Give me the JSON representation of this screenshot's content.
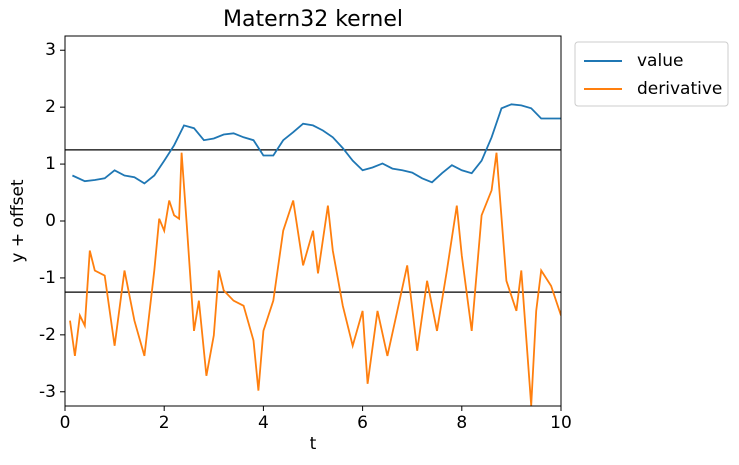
{
  "chart_data": {
    "type": "line",
    "title": "Matern32 kernel",
    "xlabel": "t",
    "ylabel": "y + offset",
    "xlim": [
      0,
      10
    ],
    "ylim": [
      -3.25,
      3.25
    ],
    "xticks": [
      0,
      2,
      4,
      6,
      8,
      10
    ],
    "yticks": [
      -3,
      -2,
      -1,
      0,
      1,
      2,
      3
    ],
    "hlines": [
      1.25,
      -1.25
    ],
    "hline_color": "#000000",
    "legend": "outside upper right",
    "series": [
      {
        "name": "value",
        "color": "#1f77b4",
        "x": [
          0.15,
          0.4,
          0.6,
          0.8,
          1.0,
          1.2,
          1.4,
          1.6,
          1.8,
          2.0,
          2.2,
          2.4,
          2.6,
          2.8,
          3.0,
          3.2,
          3.4,
          3.6,
          3.8,
          4.0,
          4.2,
          4.4,
          4.6,
          4.8,
          5.0,
          5.2,
          5.4,
          5.6,
          5.8,
          6.0,
          6.2,
          6.4,
          6.6,
          6.8,
          7.0,
          7.2,
          7.4,
          7.6,
          7.8,
          8.0,
          8.2,
          8.4,
          8.6,
          8.8,
          9.0,
          9.2,
          9.4,
          9.6,
          9.8,
          10.0
        ],
        "values": [
          0.8,
          0.7,
          0.72,
          0.75,
          0.89,
          0.8,
          0.77,
          0.66,
          0.8,
          1.06,
          1.33,
          1.68,
          1.63,
          1.42,
          1.45,
          1.52,
          1.54,
          1.47,
          1.42,
          1.15,
          1.15,
          1.42,
          1.56,
          1.71,
          1.68,
          1.59,
          1.47,
          1.28,
          1.06,
          0.89,
          0.94,
          1.01,
          0.92,
          0.89,
          0.85,
          0.75,
          0.68,
          0.84,
          0.98,
          0.89,
          0.84,
          1.06,
          1.47,
          1.98,
          2.05,
          2.03,
          1.98,
          1.8,
          1.8,
          1.8
        ]
      },
      {
        "name": "derivative",
        "color": "#ff7f0e",
        "x": [
          0.1,
          0.2,
          0.3,
          0.4,
          0.5,
          0.6,
          0.8,
          1.0,
          1.2,
          1.4,
          1.6,
          1.8,
          1.9,
          2.0,
          2.1,
          2.2,
          2.3,
          2.35,
          2.45,
          2.6,
          2.7,
          2.85,
          3.0,
          3.1,
          3.2,
          3.4,
          3.6,
          3.8,
          3.9,
          4.0,
          4.2,
          4.4,
          4.6,
          4.8,
          5.0,
          5.1,
          5.3,
          5.4,
          5.6,
          5.8,
          6.0,
          6.1,
          6.3,
          6.5,
          6.7,
          6.9,
          7.1,
          7.3,
          7.5,
          7.7,
          7.9,
          8.0,
          8.2,
          8.4,
          8.6,
          8.7,
          8.9,
          9.1,
          9.2,
          9.4,
          9.5,
          9.6,
          9.8,
          10.0
        ],
        "values": [
          -1.75,
          -2.37,
          -1.66,
          -1.84,
          -0.52,
          -0.87,
          -0.96,
          -2.19,
          -0.87,
          -1.75,
          -2.37,
          -0.87,
          0.04,
          -0.17,
          0.36,
          0.1,
          0.04,
          1.2,
          0.0,
          -1.93,
          -1.4,
          -2.72,
          -2.01,
          -0.87,
          -1.22,
          -1.4,
          -1.49,
          -2.1,
          -2.98,
          -1.93,
          -1.4,
          -0.17,
          0.36,
          -0.78,
          -0.17,
          -0.92,
          0.27,
          -0.52,
          -1.49,
          -2.19,
          -1.58,
          -2.86,
          -1.58,
          -2.37,
          -1.58,
          -0.78,
          -2.28,
          -1.05,
          -1.93,
          -0.87,
          0.27,
          -0.61,
          -1.93,
          0.1,
          0.54,
          1.2,
          -1.05,
          -1.58,
          -0.87,
          -3.24,
          -1.58,
          -0.87,
          -1.14,
          -1.66
        ]
      }
    ]
  }
}
